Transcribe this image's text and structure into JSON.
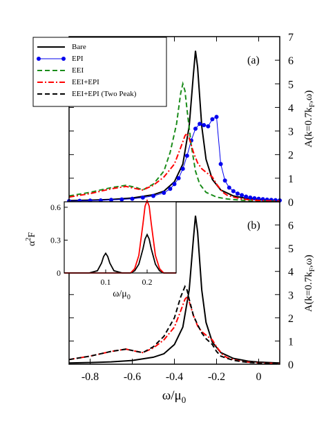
{
  "chart_data": [
    {
      "panel_label": "(a)",
      "type": "line",
      "ylabel": "A(k=0.7k",
      "ylabel_sub": "F",
      "ylabel_tail": ",ω)",
      "xlim": [
        -0.9,
        0.1
      ],
      "ylim": [
        0,
        7
      ],
      "yticks": [
        "0",
        "1",
        "2",
        "3",
        "4",
        "5",
        "6",
        "7"
      ],
      "legend_position": "top-left",
      "series": [
        {
          "name": "Bare",
          "color": "#000000",
          "style": "solid",
          "x": [
            -0.9,
            -0.8,
            -0.7,
            -0.6,
            -0.5,
            -0.45,
            -0.4,
            -0.36,
            -0.33,
            -0.31,
            -0.3,
            -0.29,
            -0.27,
            -0.25,
            -0.22,
            -0.18,
            -0.12,
            -0.05,
            0.0,
            0.05,
            0.1
          ],
          "y": [
            0.05,
            0.07,
            0.1,
            0.16,
            0.3,
            0.45,
            0.85,
            1.6,
            3.2,
            5.4,
            6.4,
            5.7,
            3.2,
            1.8,
            0.95,
            0.5,
            0.25,
            0.13,
            0.09,
            0.07,
            0.05
          ]
        },
        {
          "name": "EPI",
          "color": "#0000ee",
          "style": "markers",
          "x": [
            -0.9,
            -0.85,
            -0.8,
            -0.75,
            -0.7,
            -0.65,
            -0.6,
            -0.55,
            -0.5,
            -0.45,
            -0.42,
            -0.4,
            -0.38,
            -0.36,
            -0.34,
            -0.32,
            -0.3,
            -0.28,
            -0.26,
            -0.24,
            -0.22,
            -0.2,
            -0.18,
            -0.16,
            -0.14,
            -0.12,
            -0.1,
            -0.08,
            -0.06,
            -0.04,
            -0.02,
            0.0,
            0.02,
            0.04,
            0.06,
            0.08,
            0.1
          ],
          "y": [
            0.03,
            0.04,
            0.05,
            0.06,
            0.08,
            0.1,
            0.13,
            0.18,
            0.25,
            0.38,
            0.55,
            0.75,
            1.0,
            1.4,
            1.95,
            2.6,
            3.1,
            3.3,
            3.25,
            3.2,
            3.5,
            3.6,
            1.6,
            0.9,
            0.6,
            0.45,
            0.35,
            0.28,
            0.22,
            0.18,
            0.15,
            0.13,
            0.11,
            0.09,
            0.08,
            0.07,
            0.06
          ]
        },
        {
          "name": "EEI",
          "color": "#1a8c1a",
          "style": "dashed",
          "x": [
            -0.9,
            -0.8,
            -0.7,
            -0.63,
            -0.58,
            -0.55,
            -0.5,
            -0.45,
            -0.42,
            -0.39,
            -0.37,
            -0.36,
            -0.35,
            -0.34,
            -0.32,
            -0.3,
            -0.28,
            -0.25,
            -0.2,
            -0.15,
            -0.1,
            -0.05,
            0.0,
            0.05,
            0.1
          ],
          "y": [
            0.25,
            0.4,
            0.6,
            0.7,
            0.6,
            0.5,
            0.75,
            1.3,
            2.1,
            3.3,
            4.6,
            5.0,
            4.7,
            3.9,
            2.4,
            1.3,
            0.75,
            0.4,
            0.2,
            0.12,
            0.08,
            0.05,
            0.04,
            0.03,
            0.02
          ]
        },
        {
          "name": "EEI+EPI",
          "color": "#ff0000",
          "style": "dashdot",
          "x": [
            -0.9,
            -0.8,
            -0.7,
            -0.63,
            -0.58,
            -0.55,
            -0.5,
            -0.45,
            -0.4,
            -0.37,
            -0.35,
            -0.34,
            -0.33,
            -0.31,
            -0.29,
            -0.27,
            -0.25,
            -0.22,
            -0.2,
            -0.17,
            -0.15,
            -0.12,
            -0.08,
            -0.05,
            0.0,
            0.05,
            0.1
          ],
          "y": [
            0.2,
            0.35,
            0.55,
            0.65,
            0.55,
            0.5,
            0.7,
            1.05,
            1.6,
            2.3,
            2.8,
            2.9,
            2.7,
            2.1,
            1.65,
            1.4,
            1.25,
            1.05,
            0.75,
            0.4,
            0.28,
            0.2,
            0.12,
            0.09,
            0.06,
            0.04,
            0.03
          ]
        }
      ]
    },
    {
      "panel_label": "(b)",
      "type": "line",
      "xlabel": "ω/μ",
      "xlabel_sub": "0",
      "ylabel": "A(k=0.7k",
      "ylabel_sub": "F",
      "ylabel_tail": ",ω)",
      "xlim": [
        -0.9,
        0.1
      ],
      "ylim": [
        0,
        7
      ],
      "xticks": [
        -0.8,
        -0.6,
        -0.4,
        -0.2,
        0
      ],
      "xtick_labels": [
        "-0.8",
        "-0.6",
        "-0.4",
        "-0.2",
        "0"
      ],
      "yticks": [
        "0",
        "1",
        "2",
        "3",
        "4",
        "5",
        "6"
      ],
      "series": [
        {
          "name": "Bare",
          "color": "#000000",
          "style": "solid",
          "x": [
            -0.9,
            -0.8,
            -0.7,
            -0.6,
            -0.5,
            -0.45,
            -0.4,
            -0.36,
            -0.33,
            -0.31,
            -0.3,
            -0.29,
            -0.27,
            -0.25,
            -0.22,
            -0.18,
            -0.12,
            -0.05,
            0.0,
            0.05,
            0.1
          ],
          "y": [
            0.05,
            0.07,
            0.1,
            0.16,
            0.3,
            0.45,
            0.85,
            1.6,
            3.2,
            5.4,
            6.4,
            5.7,
            3.2,
            1.8,
            0.95,
            0.5,
            0.25,
            0.13,
            0.09,
            0.07,
            0.05
          ]
        },
        {
          "name": "EEI+EPI",
          "color": "#ff0000",
          "style": "dashdot",
          "x": [
            -0.9,
            -0.8,
            -0.7,
            -0.63,
            -0.58,
            -0.55,
            -0.5,
            -0.45,
            -0.4,
            -0.37,
            -0.35,
            -0.34,
            -0.33,
            -0.31,
            -0.29,
            -0.27,
            -0.25,
            -0.22,
            -0.2,
            -0.17,
            -0.15,
            -0.12,
            -0.08,
            -0.05,
            0.0,
            0.05,
            0.1
          ],
          "y": [
            0.2,
            0.35,
            0.55,
            0.65,
            0.55,
            0.5,
            0.7,
            1.05,
            1.6,
            2.3,
            2.8,
            2.9,
            2.7,
            2.1,
            1.65,
            1.4,
            1.25,
            1.05,
            0.75,
            0.4,
            0.28,
            0.2,
            0.12,
            0.09,
            0.06,
            0.04,
            0.03
          ]
        },
        {
          "name": "EEI+EPI (Two Peak)",
          "color": "#000000",
          "style": "dashed",
          "x": [
            -0.9,
            -0.8,
            -0.7,
            -0.63,
            -0.58,
            -0.55,
            -0.5,
            -0.45,
            -0.4,
            -0.37,
            -0.35,
            -0.34,
            -0.33,
            -0.31,
            -0.29,
            -0.27,
            -0.25,
            -0.22,
            -0.2,
            -0.18,
            -0.15,
            -0.12,
            -0.08,
            -0.05,
            0.0,
            0.05,
            0.1
          ],
          "y": [
            0.2,
            0.35,
            0.55,
            0.65,
            0.55,
            0.5,
            0.75,
            1.2,
            2.0,
            2.9,
            3.35,
            3.2,
            2.8,
            2.1,
            1.7,
            1.35,
            1.1,
            0.85,
            0.55,
            0.35,
            0.25,
            0.17,
            0.11,
            0.08,
            0.05,
            0.04,
            0.03
          ]
        }
      ]
    },
    {
      "panel_label": "inset",
      "type": "line",
      "xlabel": "ω/μ",
      "xlabel_sub": "0",
      "ylabel": "α",
      "ylabel_sup": "2",
      "ylabel_tail": "F",
      "xlim": [
        0,
        0.27
      ],
      "ylim": [
        0,
        0.65
      ],
      "xticks": [
        0.1,
        0.2
      ],
      "xtick_labels": [
        "0.1",
        "0.2"
      ],
      "yticks": [
        0,
        0.3,
        0.6
      ],
      "ytick_labels": [
        "0",
        "0.3",
        "0.6"
      ],
      "series": [
        {
          "color": "#000000",
          "style": "solid",
          "x": [
            0.0,
            0.06,
            0.08,
            0.09,
            0.095,
            0.1,
            0.105,
            0.11,
            0.12,
            0.14,
            0.16,
            0.17,
            0.18,
            0.19,
            0.195,
            0.2,
            0.205,
            0.21,
            0.22,
            0.23,
            0.24,
            0.27
          ],
          "y": [
            0,
            0,
            0.02,
            0.09,
            0.15,
            0.18,
            0.15,
            0.09,
            0.02,
            0,
            0,
            0.02,
            0.08,
            0.22,
            0.31,
            0.35,
            0.31,
            0.22,
            0.08,
            0.02,
            0,
            0
          ]
        },
        {
          "color": "#ff0000",
          "style": "solid",
          "x": [
            0.0,
            0.16,
            0.17,
            0.18,
            0.19,
            0.195,
            0.2,
            0.205,
            0.21,
            0.22,
            0.23,
            0.24,
            0.27
          ],
          "y": [
            0,
            0,
            0.04,
            0.16,
            0.45,
            0.61,
            0.66,
            0.61,
            0.45,
            0.16,
            0.04,
            0,
            0
          ]
        }
      ]
    }
  ]
}
